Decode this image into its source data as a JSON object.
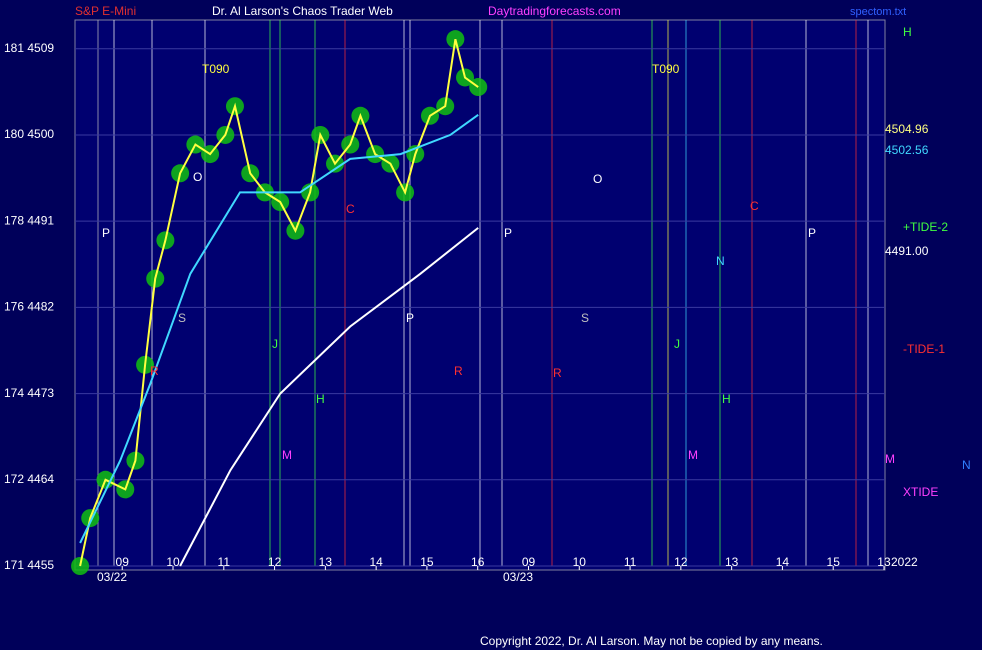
{
  "chart_data": {
    "type": "line",
    "header": [
      "S&P E-Mini",
      "Dr. Al Larson's Chaos Trader Web",
      "Daytradingforecasts.com",
      "spectom.txt"
    ],
    "footer": "Copyright 2022, Dr. Al Larson. May not be copied by any means.",
    "dates": [
      "03/22",
      "03/23"
    ],
    "xlim": [
      8.07,
      24.02
    ],
    "xticks": [
      {
        "value": 9,
        "label": "09"
      },
      {
        "value": 10,
        "label": "10"
      },
      11,
      12,
      13,
      14,
      15,
      16,
      {
        "value": 17,
        "label": "09"
      },
      {
        "value": 18,
        "label": "10"
      },
      {
        "value": 19,
        "label": "11"
      },
      {
        "value": 20,
        "label": "12"
      },
      {
        "value": 21,
        "label": "13"
      },
      {
        "value": 22,
        "label": "14"
      },
      {
        "value": 23,
        "label": "15"
      },
      {
        "value": 24,
        "label": "13"
      }
    ],
    "ylim": [
      4455,
      4512
    ],
    "yticks": [
      {
        "value": 4455,
        "label": "171  4455"
      },
      {
        "value": 4464,
        "label": "172  4464"
      },
      {
        "value": 4473,
        "label": "174  4473"
      },
      {
        "value": 4482,
        "label": "176  4482"
      },
      {
        "value": 4491,
        "label": "178  4491"
      },
      {
        "value": 4500,
        "label": "180  4500"
      },
      {
        "value": 4509,
        "label": "181  4509"
      }
    ],
    "grid": true,
    "series": [
      {
        "name": "price",
        "color": "#ffff40",
        "x": [
          8.17,
          8.37,
          8.67,
          9.06,
          9.26,
          9.45,
          9.65,
          9.85,
          10.14,
          10.44,
          10.73,
          11.03,
          11.22,
          11.52,
          11.81,
          12.11,
          12.41,
          12.7,
          12.9,
          13.19,
          13.49,
          13.69,
          13.98,
          14.28,
          14.57,
          14.77,
          15.06,
          15.36,
          15.56,
          15.75,
          16.01
        ],
        "values": [
          4455,
          4460,
          4464,
          4463,
          4466,
          4476,
          4485,
          4489,
          4496,
          4499,
          4498,
          4500,
          4503,
          4496,
          4494,
          4493,
          4490,
          4494,
          4500,
          4497,
          4499,
          4502,
          4498,
          4497,
          4494,
          4498,
          4502,
          4503,
          4510,
          4506,
          4505
        ]
      },
      {
        "name": "average",
        "color": "#40d8ff",
        "x": [
          8.17,
          8.96,
          9.55,
          10.34,
          11.32,
          12.5,
          13.49,
          14.48,
          15.46,
          16.01
        ],
        "values": [
          4457.4,
          4466,
          4474,
          4485.5,
          4494,
          4494,
          4497.5,
          4498,
          4500,
          4502.1
        ]
      },
      {
        "name": "long-average",
        "color": "#ffffff",
        "x": [
          10.14,
          11.13,
          12.11,
          13.49,
          14.87,
          16.01
        ],
        "values": [
          4455,
          4465,
          4473,
          4480,
          4485.5,
          4490.3
        ]
      }
    ],
    "annotations": [
      "H",
      "4504.96",
      "4502.56",
      "+TIDE-2",
      "4491.00",
      "-TIDE-1",
      "M",
      "N",
      "XTIDE",
      "2022",
      "T090",
      "T090",
      "P",
      "P",
      "P",
      "P",
      "S",
      "S",
      "O",
      "O",
      "J",
      "J",
      "H",
      "H",
      "M",
      "M",
      "R",
      "R",
      "R",
      "C",
      "C",
      "N"
    ]
  }
}
